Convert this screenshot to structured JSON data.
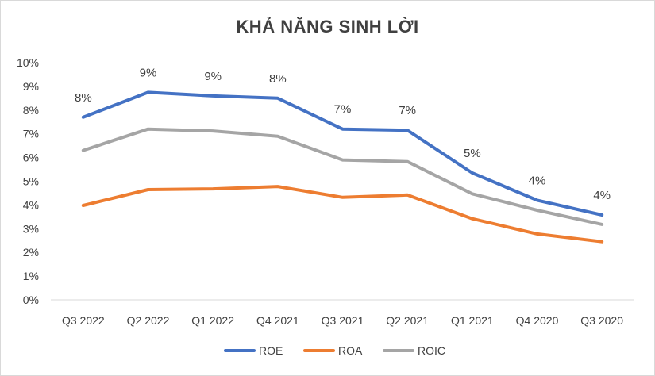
{
  "chart_data": {
    "type": "line",
    "title": "KHẢ NĂNG SINH LỜI",
    "xlabel": "",
    "ylabel": "",
    "categories": [
      "Q3 2022",
      "Q2 2022",
      "Q1 2022",
      "Q4 2021",
      "Q3 2021",
      "Q2 2021",
      "Q1 2021",
      "Q4 2020",
      "Q3 2020"
    ],
    "y_ticks": [
      "0%",
      "1%",
      "2%",
      "3%",
      "4%",
      "5%",
      "6%",
      "7%",
      "8%",
      "9%",
      "10%"
    ],
    "ylim": [
      0,
      0.1
    ],
    "grid": false,
    "legend_position": "bottom",
    "series": [
      {
        "name": "ROE",
        "color": "#4472c4",
        "values": [
          0.077,
          0.0875,
          0.086,
          0.085,
          0.072,
          0.0715,
          0.0535,
          0.042,
          0.0358
        ],
        "data_labels": [
          "8%",
          "9%",
          "9%",
          "8%",
          "7%",
          "7%",
          "5%",
          "4%",
          "4%"
        ]
      },
      {
        "name": "ROA",
        "color": "#ed7d31",
        "values": [
          0.0398,
          0.0465,
          0.0468,
          0.0478,
          0.0432,
          0.0442,
          0.0342,
          0.0278,
          0.0245
        ]
      },
      {
        "name": "ROIC",
        "color": "#a5a5a5",
        "values": [
          0.063,
          0.072,
          0.0712,
          0.069,
          0.059,
          0.0583,
          0.0447,
          0.0378,
          0.0318
        ]
      }
    ]
  }
}
